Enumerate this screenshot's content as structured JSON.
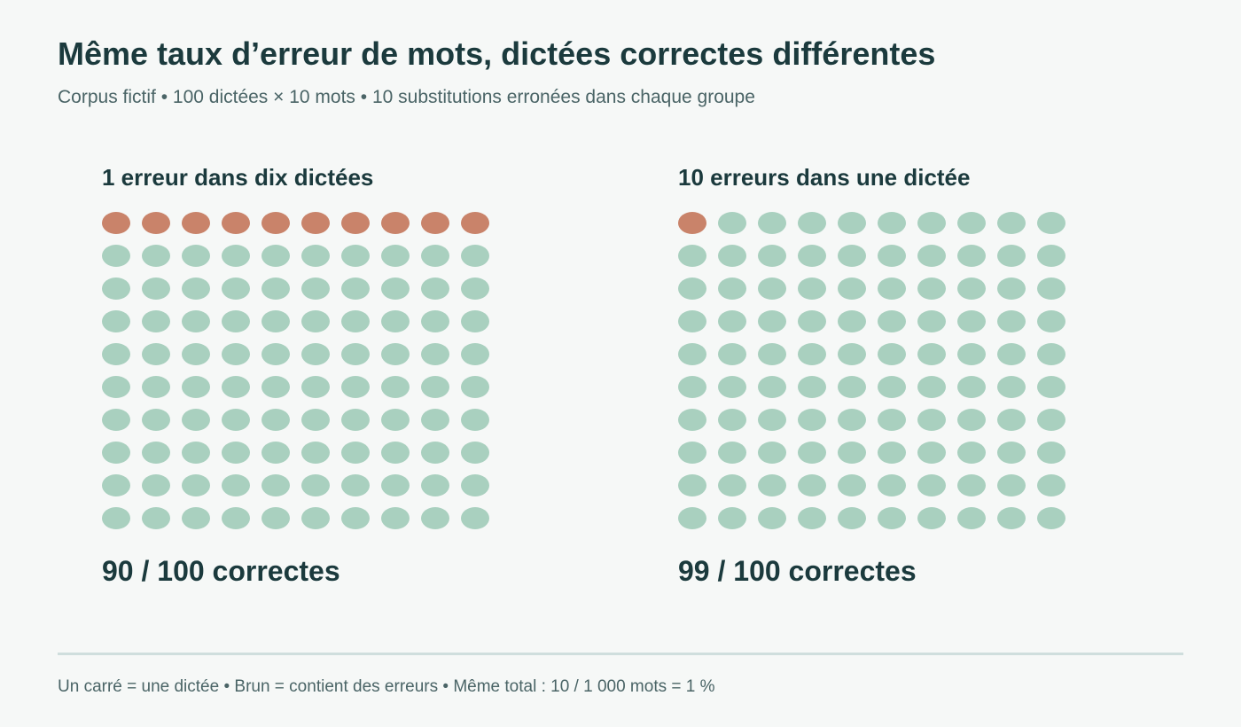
{
  "header": {
    "title": "Même taux d’erreur de mots, dictées correctes différentes",
    "subtitle": "Corpus fictif • 100 dictées × 10 mots • 10 substitutions erronées dans chaque groupe"
  },
  "footer": {
    "note": "Un carré = une dictée • Brun = contient des erreurs • Même total : 10 / 1 000 mots = 1 %"
  },
  "colors": {
    "error": "#c9836a",
    "correct": "#a9d0bf"
  },
  "chart_data": [
    {
      "type": "waffle",
      "title": "1 erreur dans dix dictées",
      "rows": 10,
      "cols": 10,
      "total": 100,
      "error_dictations": 10,
      "correct_dictations": 90,
      "errors_per_error_dictation": 1,
      "error_cells": [
        0,
        1,
        2,
        3,
        4,
        5,
        6,
        7,
        8,
        9
      ],
      "summary": "90 / 100 correctes"
    },
    {
      "type": "waffle",
      "title": "10 erreurs dans une dictée",
      "rows": 10,
      "cols": 10,
      "total": 100,
      "error_dictations": 1,
      "correct_dictations": 99,
      "errors_per_error_dictation": 10,
      "error_cells": [
        0
      ],
      "summary": "99 / 100 correctes"
    }
  ]
}
